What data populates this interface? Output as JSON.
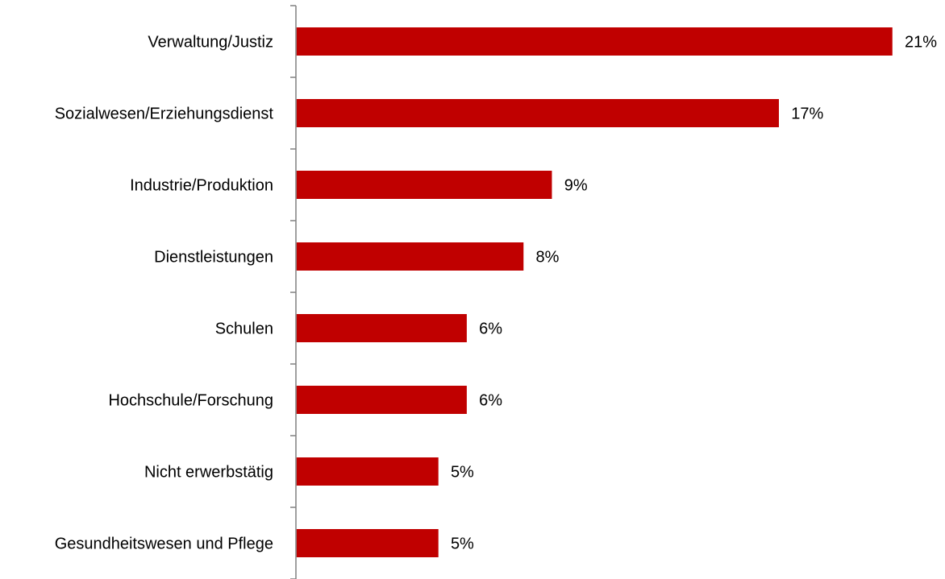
{
  "chart_data": {
    "type": "bar",
    "orientation": "horizontal",
    "categories": [
      "Verwaltung/Justiz",
      "Sozialwesen/Erziehungsdienst",
      "Industrie/Produktion",
      "Dienstleistungen",
      "Schulen",
      "Hochschule/Forschung",
      "Nicht erwerbstätig",
      "Gesundheitswesen und Pflege"
    ],
    "values": [
      21,
      17,
      9,
      8,
      6,
      6,
      5,
      5
    ],
    "value_labels": [
      "21%",
      "17%",
      "9%",
      "8%",
      "6%",
      "6%",
      "5%",
      "5%"
    ],
    "unit": "%",
    "xlim": [
      0,
      21
    ],
    "bar_color": "#c00000",
    "axis_color": "#808080",
    "grid": false,
    "legend": "none"
  }
}
